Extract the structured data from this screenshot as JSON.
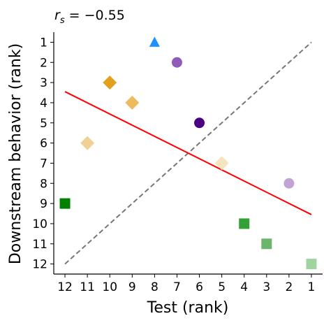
{
  "chart_data": {
    "type": "scatter",
    "title_var": "r",
    "title_sub": "s",
    "title_rest": " = −0.55",
    "xlabel": "Test (rank)",
    "ylabel": "Downstream behavior (rank)",
    "x_ticks": [
      12,
      11,
      10,
      9,
      8,
      7,
      6,
      5,
      4,
      3,
      2,
      1
    ],
    "y_ticks": [
      1,
      2,
      3,
      4,
      5,
      6,
      7,
      8,
      9,
      10,
      11,
      12
    ],
    "xlim": [
      12.5,
      0.5
    ],
    "ylim": [
      12.5,
      0.5
    ],
    "x_inverted": true,
    "y_inverted": true,
    "grid": false,
    "points": [
      {
        "x": 8,
        "y": 1,
        "marker": "triangle",
        "color": "#1E90FF"
      },
      {
        "x": 7,
        "y": 2,
        "marker": "circle",
        "color": "#8E5BB8"
      },
      {
        "x": 10,
        "y": 3,
        "marker": "diamond",
        "color": "#E3A01A"
      },
      {
        "x": 9,
        "y": 4,
        "marker": "diamond",
        "color": "#EBBB5E"
      },
      {
        "x": 6,
        "y": 5,
        "marker": "circle",
        "color": "#4B0082"
      },
      {
        "x": 11,
        "y": 6,
        "marker": "diamond",
        "color": "#F1D193"
      },
      {
        "x": 5,
        "y": 7,
        "marker": "diamond",
        "color": "#F6E4BF"
      },
      {
        "x": 2,
        "y": 8,
        "marker": "circle",
        "color": "#C1A3D6"
      },
      {
        "x": 12,
        "y": 9,
        "marker": "square",
        "color": "#008000"
      },
      {
        "x": 4,
        "y": 10,
        "marker": "square",
        "color": "#35A035"
      },
      {
        "x": 3,
        "y": 11,
        "marker": "square",
        "color": "#6CB56C"
      },
      {
        "x": 1,
        "y": 12,
        "marker": "square",
        "color": "#9FD49F"
      }
    ],
    "identity_line": {
      "from": [
        12,
        12
      ],
      "to": [
        1,
        1
      ],
      "style": "dashed",
      "color": "#777777"
    },
    "fit_line": {
      "from": [
        12,
        3.45
      ],
      "to": [
        1,
        9.55
      ],
      "color": "#FF0000"
    }
  }
}
